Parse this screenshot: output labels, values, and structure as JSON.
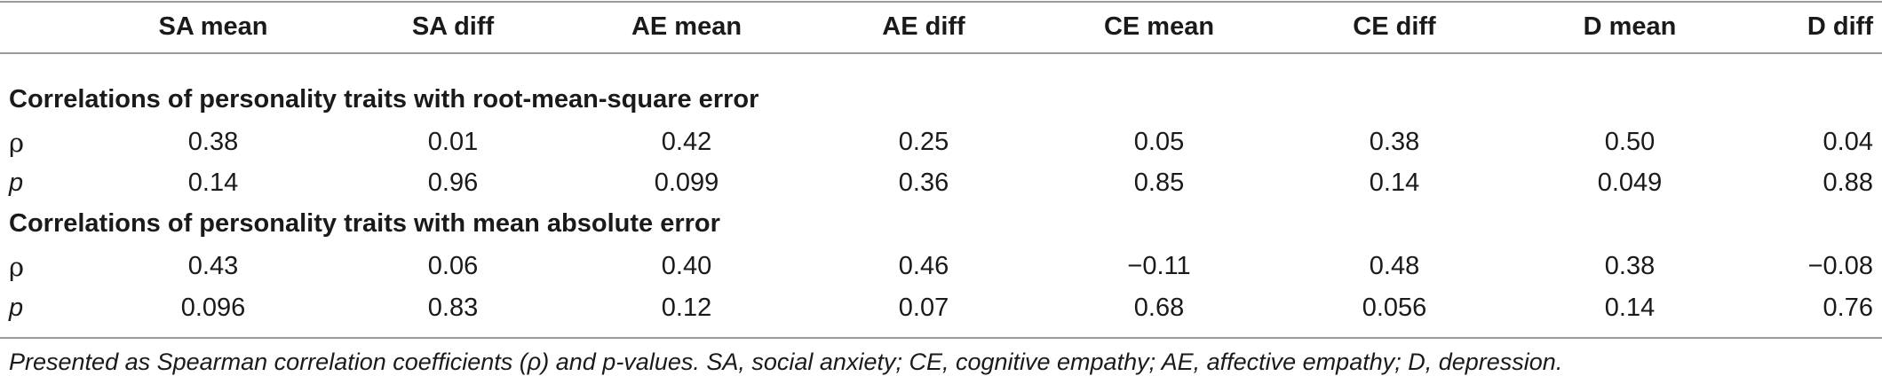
{
  "table": {
    "headers": [
      "SA mean",
      "SA diff",
      "AE mean",
      "AE diff",
      "CE mean",
      "CE diff",
      "D mean",
      "D diff"
    ],
    "sections": [
      {
        "title": "Correlations of personality traits with root-mean-square error",
        "rows": [
          {
            "label": "ρ",
            "values": [
              "0.38",
              "0.01",
              "0.42",
              "0.25",
              "0.05",
              "0.38",
              "0.50",
              "0.04"
            ]
          },
          {
            "label": "p",
            "values": [
              "0.14",
              "0.96",
              "0.099",
              "0.36",
              "0.85",
              "0.14",
              "0.049",
              "0.88"
            ]
          }
        ]
      },
      {
        "title": "Correlations of personality traits with mean absolute error",
        "rows": [
          {
            "label": "ρ",
            "values": [
              "0.43",
              "0.06",
              "0.40",
              "0.46",
              "−0.11",
              "0.48",
              "0.38",
              "−0.08"
            ]
          },
          {
            "label": "p",
            "values": [
              "0.096",
              "0.83",
              "0.12",
              "0.07",
              "0.68",
              "0.056",
              "0.14",
              "0.76"
            ]
          }
        ]
      }
    ]
  },
  "footnote": "Presented as Spearman correlation coefficients (ρ) and p-values. SA, social anxiety; CE, cognitive empathy; AE, affective empathy; D, depression."
}
